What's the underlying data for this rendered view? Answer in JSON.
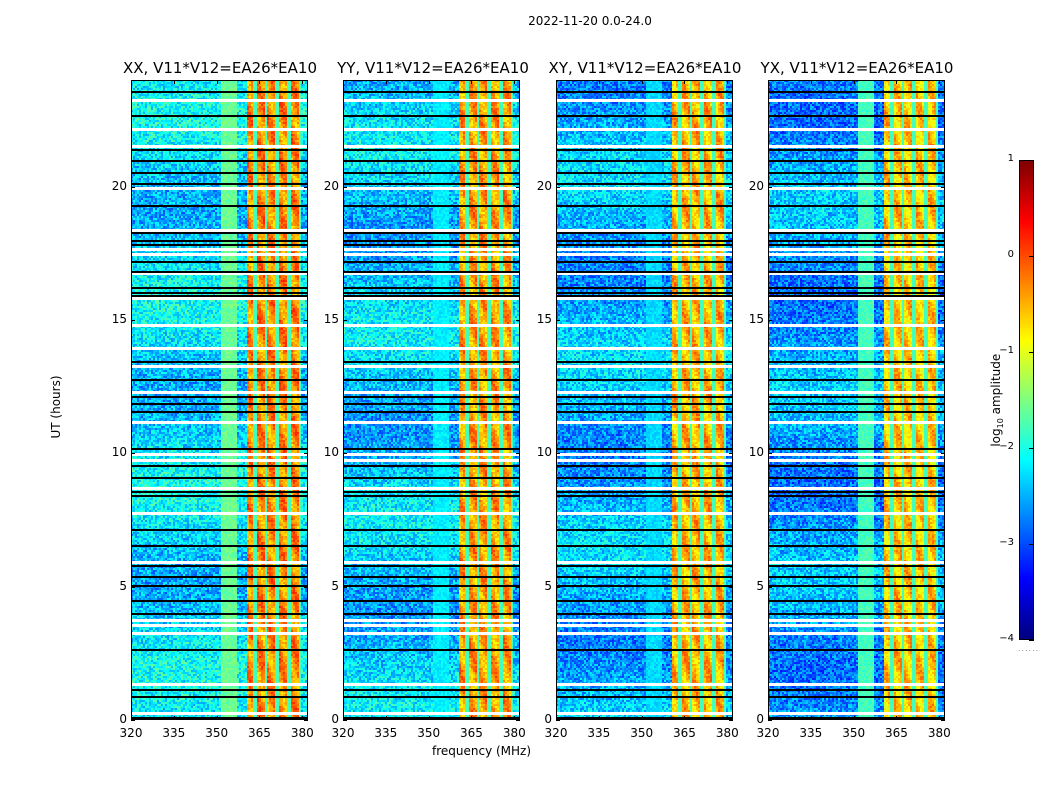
{
  "figure": {
    "suptitle": "2022-11-20 0.0-24.0",
    "xlabel": "frequency (MHz)",
    "ylabel": "UT (hours)",
    "colorbar": {
      "label": "log10 amplitude",
      "label_main": "log",
      "label_sub": "10",
      "label_rest": " amplitude",
      "ticks": [
        "1",
        "0",
        "−1",
        "−2",
        "−3",
        "−4"
      ],
      "tick_values": [
        1,
        0,
        -1,
        -2,
        -3,
        -4
      ],
      "range": [
        -4,
        1
      ],
      "colormap": "jet",
      "extras": "......"
    }
  },
  "chart_data": {
    "type": "heatmap",
    "title": "2022-11-20 0.0-24.0",
    "xlabel": "frequency (MHz)",
    "ylabel": "UT (hours)",
    "xlim": [
      320,
      382
    ],
    "ylim": [
      0,
      24
    ],
    "xticks": [
      320,
      335,
      350,
      365,
      380
    ],
    "xtick_labels": [
      "320",
      "335",
      "350",
      "365",
      "380"
    ],
    "yticks": [
      0,
      5,
      10,
      15,
      20
    ],
    "ytick_labels": [
      "0",
      "5",
      "10",
      "15",
      "20"
    ],
    "color_range": [
      -4,
      1
    ],
    "colorbar_label": "log10 amplitude",
    "panels": [
      {
        "name": "XX",
        "title": "XX, V11*V12=EA26*EA10",
        "baseline_level": -2.3,
        "band_level": -0.3,
        "side_band_level": -1.6,
        "side_band": [
          351,
          357
        ]
      },
      {
        "name": "YY",
        "title": "YY, V11*V12=EA26*EA10",
        "baseline_level": -2.4,
        "band_level": -0.4,
        "side_band_level": -2.2,
        "side_band": [
          351,
          357
        ]
      },
      {
        "name": "XY",
        "title": "XY, V11*V12=EA26*EA10",
        "baseline_level": -2.5,
        "band_level": -0.5,
        "side_band_level": -2.3,
        "side_band": [
          351,
          357
        ]
      },
      {
        "name": "YX",
        "title": "YX, V11*V12=EA26*EA10",
        "baseline_level": -2.6,
        "band_level": -0.6,
        "side_band_level": -1.8,
        "side_band": [
          351,
          357
        ]
      }
    ],
    "rfi_band_MHz": [
      360,
      379
    ],
    "rfi_subchannel_gaps_MHz": [
      363,
      367,
      371,
      375,
      379
    ],
    "flagged_hours_white": [
      0.3,
      1.4,
      3.3,
      3.6,
      3.8,
      5.95,
      7.8,
      8.75,
      9.8,
      10.0,
      11.2,
      12.35,
      13.3,
      14.0,
      14.85,
      15.85,
      16.8,
      17.5,
      17.7,
      18.4,
      20.0,
      21.55,
      22.2,
      23.3
    ],
    "flagged_hours_black": [
      0.1,
      0.9,
      1.15,
      2.65,
      4.0,
      4.5,
      5.05,
      5.4,
      5.8,
      6.55,
      7.15,
      8.45,
      8.6,
      9.1,
      9.55,
      10.2,
      11.6,
      11.9,
      12.15,
      12.8,
      13.45,
      15.95,
      16.05,
      16.25,
      16.85,
      17.2,
      17.85,
      18.0,
      18.3,
      19.3,
      20.15,
      20.55,
      21.0,
      21.4,
      22.7,
      23.6
    ]
  }
}
